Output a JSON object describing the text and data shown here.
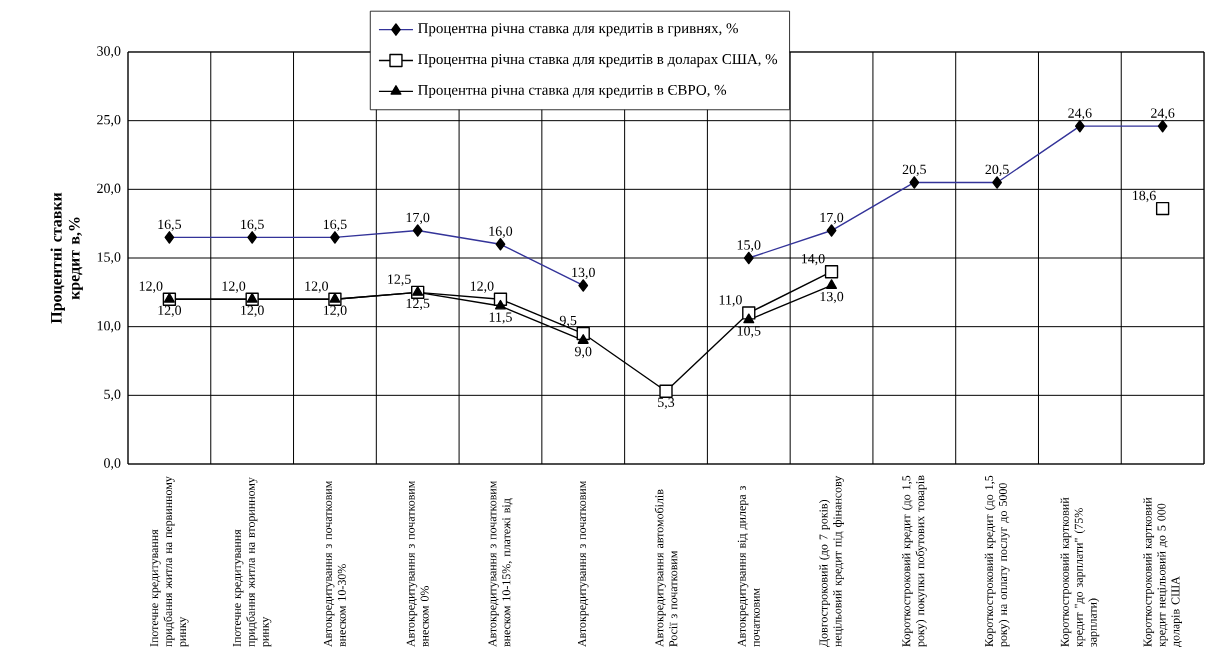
{
  "chart_data": {
    "type": "line",
    "ylabel": "Процентні ставки кредит в,%",
    "categories": [
      "Іпотечне кредитування придбання житла на первинному ринку",
      "Іпотечне кредитування придбання житла на вторинному ринку",
      "Автокредитування з початковим внеском 10-30%",
      "Автокредитування з початковим внеском 0%",
      "Автокредитування з початковим внеском 10-15%, платежі від",
      "Автокредитування з початковим",
      "Автокредитування автомобілів Росії з початковим",
      "Автокредитування від дилера з початковим",
      "Довгостроковий (до 7 років) нецільовий кредит під фінансову",
      "Короткостроковий кредит (до 1,5 року) покупки побутових товарів",
      "Короткостроковий кредит (до 1,5 року) на оплату послуг до 5000",
      "Короткостроковий картковий кредит \"до зарплати\" (75% зарплати)",
      "Короткостроковий картковий кредит нецільовий до 5 000 доларів США"
    ],
    "series": [
      {
        "name": "Процентна річна ставка для кредитів в гривнях, %",
        "color": "#333399",
        "marker": "diamond",
        "values": [
          16.5,
          16.5,
          16.5,
          17.0,
          16.0,
          13.0,
          null,
          15.0,
          17.0,
          20.5,
          20.5,
          24.6,
          24.6
        ],
        "value_labels": [
          "16,5",
          "16,5",
          "16,5",
          "17,0",
          "16,0",
          "13,0",
          null,
          "15,0",
          "17,0",
          "20,5",
          "20,5",
          "24,6",
          "24,6"
        ]
      },
      {
        "name": "Процентна річна ставка для кредитів в доларах США, %",
        "color": "#000000",
        "marker": "square",
        "values": [
          12.0,
          12.0,
          12.0,
          12.5,
          12.0,
          9.5,
          5.3,
          11.0,
          14.0,
          null,
          null,
          null,
          18.6
        ],
        "value_labels": [
          "12,0",
          "12,0",
          "12,0",
          "12,5",
          "12,0",
          "9,5",
          "5,3",
          "11,0",
          "14,0",
          null,
          null,
          null,
          "18,6"
        ]
      },
      {
        "name": "Процентна річна ставка для кредитів в ЄВРО, %",
        "color": "#000000",
        "marker": "triangle",
        "values": [
          12.0,
          12.0,
          12.0,
          12.5,
          11.5,
          9.0,
          null,
          10.5,
          13.0,
          null,
          null,
          null,
          null
        ],
        "value_labels": [
          "12,0",
          "12,0",
          "12,0",
          "12,5",
          "11,5",
          "9,0",
          null,
          "10,5",
          "13,0",
          null,
          null,
          null,
          null
        ]
      }
    ],
    "ylim": [
      0,
      30
    ],
    "yticks": [
      {
        "value": 0,
        "label": "0,0"
      },
      {
        "value": 5,
        "label": "5,0"
      },
      {
        "value": 10,
        "label": "10,0"
      },
      {
        "value": 15,
        "label": "15,0"
      },
      {
        "value": 20,
        "label": "20,0"
      },
      {
        "value": 25,
        "label": "25,0"
      },
      {
        "value": 30,
        "label": "30,0"
      }
    ],
    "grid": true,
    "legend": "top",
    "line_style": "solid"
  }
}
